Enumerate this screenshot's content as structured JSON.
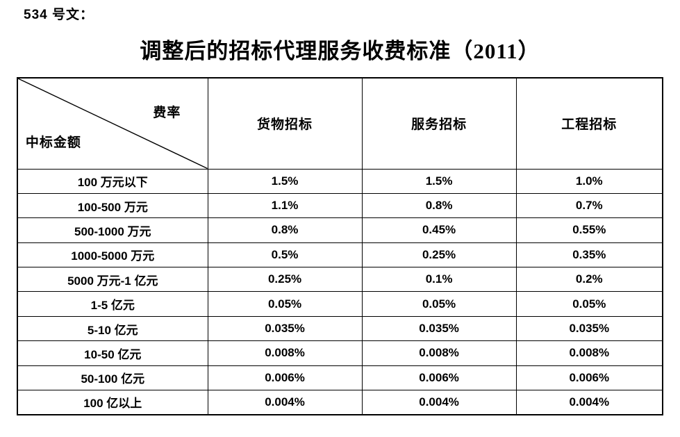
{
  "doc_number": "534 号文：",
  "title": "调整后的招标代理服务收费标准（2011）",
  "colors": {
    "text": "#000000",
    "border": "#000000",
    "background": "#ffffff"
  },
  "table": {
    "corner": {
      "top_right": "费率",
      "bottom_left": "中标金额"
    },
    "headers": [
      "货物招标",
      "服务招标",
      "工程招标"
    ],
    "rows": [
      {
        "amount": "100 万元以下",
        "values": [
          "1.5%",
          "1.5%",
          "1.0%"
        ]
      },
      {
        "amount": "100-500 万元",
        "values": [
          "1.1%",
          "0.8%",
          "0.7%"
        ]
      },
      {
        "amount": "500-1000 万元",
        "values": [
          "0.8%",
          "0.45%",
          "0.55%"
        ]
      },
      {
        "amount": "1000-5000 万元",
        "values": [
          "0.5%",
          "0.25%",
          "0.35%"
        ]
      },
      {
        "amount": "5000 万元-1 亿元",
        "values": [
          "0.25%",
          "0.1%",
          "0.2%"
        ]
      },
      {
        "amount": "1-5 亿元",
        "values": [
          "0.05%",
          "0.05%",
          "0.05%"
        ]
      },
      {
        "amount": "5-10 亿元",
        "values": [
          "0.035%",
          "0.035%",
          "0.035%"
        ]
      },
      {
        "amount": "10-50 亿元",
        "values": [
          "0.008%",
          "0.008%",
          "0.008%"
        ]
      },
      {
        "amount": "50-100 亿元",
        "values": [
          "0.006%",
          "0.006%",
          "0.006%"
        ]
      },
      {
        "amount": "100 亿以上",
        "values": [
          "0.004%",
          "0.004%",
          "0.004%"
        ]
      }
    ]
  }
}
